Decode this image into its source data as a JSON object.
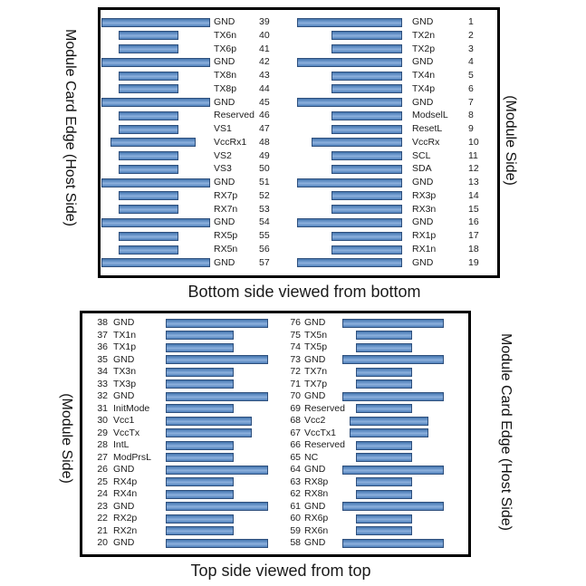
{
  "colors": {
    "bar_fill": "#4f81bd",
    "bar_border": "#2e4f7c",
    "panel_border": "#000000",
    "text": "#1c1c1c"
  },
  "captions": {
    "top_panel": "Bottom side viewed from bottom",
    "bottom_panel": "Top side viewed from top"
  },
  "side_labels": {
    "top_left": "Module Card Edge (Host Side)",
    "top_right": "(Module Side)",
    "bottom_left": "(Module Side)",
    "bottom_right": "Module Card Edge (Host Side)"
  },
  "panels": [
    {
      "name": "bottom-side-viewed-from-bottom",
      "left_column": [
        {
          "name": "GND",
          "num": "39"
        },
        {
          "name": "TX6n",
          "num": "40"
        },
        {
          "name": "TX6p",
          "num": "41"
        },
        {
          "name": "GND",
          "num": "42"
        },
        {
          "name": "TX8n",
          "num": "43"
        },
        {
          "name": "TX8p",
          "num": "44"
        },
        {
          "name": "GND",
          "num": "45"
        },
        {
          "name": "Reserved",
          "num": "46"
        },
        {
          "name": "VS1",
          "num": "47"
        },
        {
          "name": "VccRx1",
          "num": "48"
        },
        {
          "name": "VS2",
          "num": "49"
        },
        {
          "name": "VS3",
          "num": "50"
        },
        {
          "name": "GND",
          "num": "51"
        },
        {
          "name": "RX7p",
          "num": "52"
        },
        {
          "name": "RX7n",
          "num": "53"
        },
        {
          "name": "GND",
          "num": "54"
        },
        {
          "name": "RX5p",
          "num": "55"
        },
        {
          "name": "RX5n",
          "num": "56"
        },
        {
          "name": "GND",
          "num": "57"
        }
      ],
      "right_column": [
        {
          "name": "GND",
          "num": "1"
        },
        {
          "name": "TX2n",
          "num": "2"
        },
        {
          "name": "TX2p",
          "num": "3"
        },
        {
          "name": "GND",
          "num": "4"
        },
        {
          "name": "TX4n",
          "num": "5"
        },
        {
          "name": "TX4p",
          "num": "6"
        },
        {
          "name": "GND",
          "num": "7"
        },
        {
          "name": "ModselL",
          "num": "8"
        },
        {
          "name": "ResetL",
          "num": "9"
        },
        {
          "name": "VccRx",
          "num": "10"
        },
        {
          "name": "SCL",
          "num": "11"
        },
        {
          "name": "SDA",
          "num": "12"
        },
        {
          "name": "GND",
          "num": "13"
        },
        {
          "name": "RX3p",
          "num": "14"
        },
        {
          "name": "RX3n",
          "num": "15"
        },
        {
          "name": "GND",
          "num": "16"
        },
        {
          "name": "RX1p",
          "num": "17"
        },
        {
          "name": "RX1n",
          "num": "18"
        },
        {
          "name": "GND",
          "num": "19"
        }
      ]
    },
    {
      "name": "top-side-viewed-from-top",
      "left_column": [
        {
          "num": "38",
          "name": "GND"
        },
        {
          "num": "37",
          "name": "TX1n"
        },
        {
          "num": "36",
          "name": "TX1p"
        },
        {
          "num": "35",
          "name": "GND"
        },
        {
          "num": "34",
          "name": "TX3n"
        },
        {
          "num": "33",
          "name": "TX3p"
        },
        {
          "num": "32",
          "name": "GND"
        },
        {
          "num": "31",
          "name": "InitMode"
        },
        {
          "num": "30",
          "name": "Vcc1"
        },
        {
          "num": "29",
          "name": "VccTx"
        },
        {
          "num": "28",
          "name": "IntL"
        },
        {
          "num": "27",
          "name": "ModPrsL"
        },
        {
          "num": "26",
          "name": "GND"
        },
        {
          "num": "25",
          "name": "RX4p"
        },
        {
          "num": "24",
          "name": "RX4n"
        },
        {
          "num": "23",
          "name": "GND"
        },
        {
          "num": "22",
          "name": "RX2p"
        },
        {
          "num": "21",
          "name": "RX2n"
        },
        {
          "num": "20",
          "name": "GND"
        }
      ],
      "right_column": [
        {
          "num": "76",
          "name": "GND"
        },
        {
          "num": "75",
          "name": "TX5n"
        },
        {
          "num": "74",
          "name": "TX5p"
        },
        {
          "num": "73",
          "name": "GND"
        },
        {
          "num": "72",
          "name": "TX7n"
        },
        {
          "num": "71",
          "name": "TX7p"
        },
        {
          "num": "70",
          "name": "GND"
        },
        {
          "num": "69",
          "name": "Reserved"
        },
        {
          "num": "68",
          "name": "Vcc2"
        },
        {
          "num": "67",
          "name": "VccTx1"
        },
        {
          "num": "66",
          "name": "Reserved"
        },
        {
          "num": "65",
          "name": "NC"
        },
        {
          "num": "64",
          "name": "GND"
        },
        {
          "num": "63",
          "name": "RX8p"
        },
        {
          "num": "62",
          "name": "RX8n"
        },
        {
          "num": "61",
          "name": "GND"
        },
        {
          "num": "60",
          "name": "RX6p"
        },
        {
          "num": "59",
          "name": "RX6n"
        },
        {
          "num": "58",
          "name": "GND"
        }
      ]
    }
  ]
}
